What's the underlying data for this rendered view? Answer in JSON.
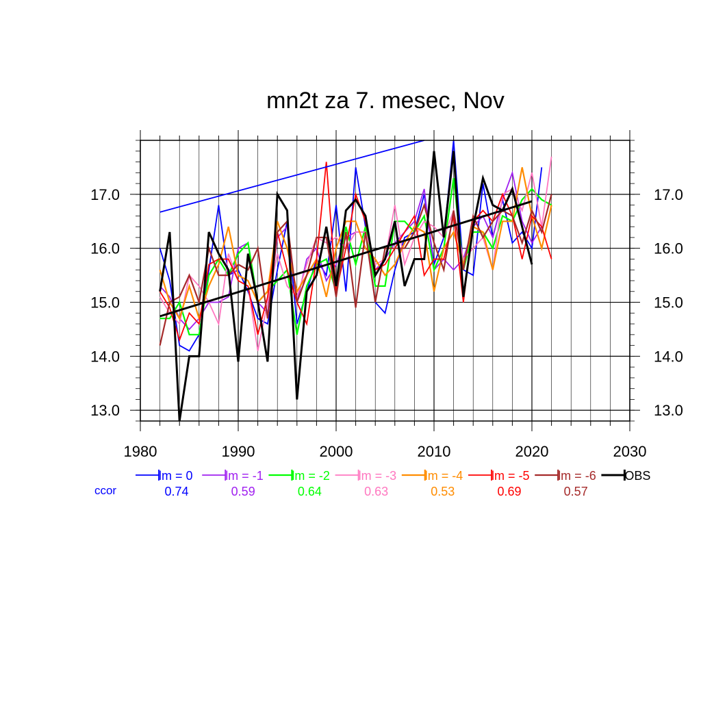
{
  "chart_data": {
    "type": "line",
    "title": "mn2t za 7. mesec, Nov",
    "xlabel": "",
    "ylabel": "",
    "xlim": [
      1980,
      2030
    ],
    "ylim": [
      12.8,
      18.0
    ],
    "x_ticks": [
      "1980",
      "1990",
      "2000",
      "2010",
      "2020",
      "2030"
    ],
    "y_ticks": [
      "13.0",
      "14.0",
      "15.0",
      "16.0",
      "17.0"
    ],
    "grid": true,
    "legend_position": "bottom",
    "ccor_label": "ccor",
    "series": [
      {
        "name": "lm = 0",
        "ccor": "0.74",
        "color": "#0000ff",
        "width": 1.8,
        "x": [
          1982,
          1983,
          1984,
          1985,
          1986,
          1987,
          1988,
          1989,
          1990,
          1991,
          1992,
          1993,
          1994,
          1995,
          1996,
          1997,
          1998,
          1999,
          2000,
          2001,
          2002,
          2003,
          2004,
          2005,
          2006,
          2007,
          2008,
          2009,
          2010,
          2011,
          2012,
          2013,
          2014,
          2015,
          2016,
          2017,
          2018,
          2019,
          2020,
          2021
        ],
        "values": [
          16.0,
          15.4,
          14.2,
          14.1,
          14.4,
          15.6,
          16.8,
          15.5,
          15.6,
          15.2,
          14.7,
          14.6,
          15.6,
          16.5,
          14.6,
          15.2,
          15.8,
          15.5,
          16.8,
          15.2,
          17.5,
          16.4,
          15.0,
          14.8,
          15.6,
          16.2,
          16.3,
          17.0,
          15.7,
          16.2,
          18.0,
          15.6,
          15.5,
          17.2,
          16.2,
          16.9,
          16.1,
          16.3,
          16.0,
          17.5
        ]
      },
      {
        "name": "lm = -1",
        "ccor": "0.59",
        "color": "#a020f0",
        "width": 1.8,
        "x": [
          1982,
          1983,
          1984,
          1985,
          1986,
          1987,
          1988,
          1989,
          1990,
          1991,
          1992,
          1993,
          1994,
          1995,
          1996,
          1997,
          1998,
          1999,
          2000,
          2001,
          2002,
          2003,
          2004,
          2005,
          2006,
          2007,
          2008,
          2009,
          2010,
          2011,
          2012,
          2013,
          2014,
          2015,
          2016,
          2017,
          2018,
          2019,
          2020,
          2021
        ],
        "values": [
          15.3,
          15.1,
          14.7,
          14.5,
          14.7,
          15.0,
          15.0,
          15.1,
          16.0,
          16.1,
          15.0,
          14.8,
          16.2,
          16.4,
          15.0,
          15.8,
          16.0,
          15.4,
          15.7,
          16.2,
          16.3,
          16.3,
          15.6,
          15.8,
          16.1,
          16.3,
          16.5,
          17.1,
          15.6,
          15.8,
          15.6,
          15.8,
          16.4,
          16.6,
          16.2,
          16.9,
          17.4,
          16.5,
          16.1,
          16.4
        ]
      },
      {
        "name": "lm = -2",
        "ccor": "0.64",
        "color": "#00ff00",
        "width": 2.2,
        "x": [
          1982,
          1983,
          1984,
          1985,
          1986,
          1987,
          1988,
          1989,
          1990,
          1991,
          1992,
          1993,
          1994,
          1995,
          1996,
          1997,
          1998,
          1999,
          2000,
          2001,
          2002,
          2003,
          2004,
          2005,
          2006,
          2007,
          2008,
          2009,
          2010,
          2011,
          2012,
          2013,
          2014,
          2015,
          2016,
          2017,
          2018,
          2019,
          2020,
          2021,
          2022
        ],
        "values": [
          14.7,
          14.7,
          15.0,
          14.4,
          14.4,
          15.5,
          15.8,
          15.5,
          15.9,
          16.1,
          15.0,
          15.2,
          15.4,
          15.6,
          14.4,
          15.3,
          15.7,
          15.8,
          15.2,
          16.4,
          15.7,
          16.4,
          15.3,
          15.3,
          16.5,
          16.5,
          16.3,
          16.6,
          15.6,
          16.0,
          17.3,
          15.6,
          16.3,
          16.3,
          16.0,
          16.6,
          16.5,
          16.9,
          17.1,
          16.9,
          16.8
        ]
      },
      {
        "name": "lm = -3",
        "ccor": "0.63",
        "color": "#ff77c0",
        "width": 1.8,
        "x": [
          1982,
          1983,
          1984,
          1985,
          1986,
          1987,
          1988,
          1989,
          1990,
          1991,
          1992,
          1993,
          1994,
          1995,
          1996,
          1997,
          1998,
          1999,
          2000,
          2001,
          2002,
          2003,
          2004,
          2005,
          2006,
          2007,
          2008,
          2009,
          2010,
          2011,
          2012,
          2013,
          2014,
          2015,
          2016,
          2017,
          2018,
          2019,
          2020,
          2021,
          2022
        ],
        "values": [
          15.1,
          14.8,
          14.6,
          15.5,
          15.3,
          15.0,
          14.6,
          15.9,
          15.4,
          15.3,
          14.1,
          15.0,
          15.9,
          15.3,
          15.1,
          15.7,
          16.2,
          16.1,
          16.2,
          16.0,
          16.3,
          16.3,
          15.7,
          15.8,
          16.8,
          15.7,
          16.2,
          16.5,
          16.4,
          16.2,
          16.7,
          15.8,
          16.0,
          16.2,
          15.6,
          17.0,
          17.1,
          16.7,
          17.4,
          16.4,
          17.7
        ]
      },
      {
        "name": "lm = -4",
        "ccor": "0.53",
        "color": "#ff8c00",
        "width": 2.2,
        "x": [
          1982,
          1983,
          1984,
          1985,
          1986,
          1987,
          1988,
          1989,
          1990,
          1991,
          1992,
          1993,
          1994,
          1995,
          1996,
          1997,
          1998,
          1999,
          2000,
          2001,
          2002,
          2003,
          2004,
          2005,
          2006,
          2007,
          2008,
          2009,
          2010,
          2011,
          2012,
          2013,
          2014,
          2015,
          2016,
          2017,
          2018,
          2019,
          2020,
          2021,
          2022
        ],
        "values": [
          15.6,
          15.0,
          14.7,
          15.3,
          14.7,
          15.3,
          15.7,
          16.4,
          15.5,
          15.4,
          15.0,
          15.2,
          16.5,
          16.0,
          15.2,
          15.5,
          15.8,
          15.1,
          16.0,
          16.5,
          16.5,
          16.0,
          15.8,
          15.5,
          15.7,
          16.1,
          16.4,
          16.3,
          15.2,
          16.0,
          16.3,
          15.7,
          16.4,
          16.3,
          15.6,
          16.5,
          16.5,
          17.5,
          16.6,
          16.0,
          16.8
        ]
      },
      {
        "name": "lm = -5",
        "ccor": "0.69",
        "color": "#ff0000",
        "width": 1.8,
        "x": [
          1982,
          1983,
          1984,
          1985,
          1986,
          1987,
          1988,
          1989,
          1990,
          1991,
          1992,
          1993,
          1994,
          1995,
          1996,
          1997,
          1998,
          1999,
          2000,
          2001,
          2002,
          2003,
          2004,
          2005,
          2006,
          2007,
          2008,
          2009,
          2010,
          2011,
          2012,
          2013,
          2014,
          2015,
          2016,
          2017,
          2018,
          2019,
          2020,
          2021,
          2022
        ],
        "values": [
          15.2,
          14.9,
          14.3,
          14.8,
          14.6,
          15.7,
          15.8,
          15.8,
          15.4,
          15.3,
          14.4,
          15.1,
          16.3,
          15.6,
          15.0,
          14.6,
          15.8,
          17.6,
          15.2,
          16.0,
          17.0,
          16.5,
          15.6,
          15.7,
          16.0,
          16.3,
          16.6,
          15.5,
          15.8,
          15.8,
          16.6,
          15.0,
          16.5,
          16.7,
          16.5,
          17.0,
          16.6,
          15.8,
          16.6,
          16.4,
          15.8
        ]
      },
      {
        "name": "lm = -6",
        "ccor": "0.57",
        "color": "#a52a2a",
        "width": 2.2,
        "x": [
          1982,
          1983,
          1984,
          1985,
          1986,
          1987,
          1988,
          1989,
          1990,
          1991,
          1992,
          1993,
          1994,
          1995,
          1996,
          1997,
          1998,
          1999,
          2000,
          2001,
          2002,
          2003,
          2004,
          2005,
          2006,
          2007,
          2008,
          2009,
          2010,
          2011,
          2012,
          2013,
          2014,
          2015,
          2016,
          2017,
          2018,
          2019,
          2020,
          2021,
          2022
        ],
        "values": [
          14.2,
          15.0,
          15.1,
          15.5,
          15.0,
          16.0,
          15.5,
          15.5,
          15.7,
          15.6,
          16.0,
          14.7,
          16.3,
          16.5,
          15.0,
          15.5,
          16.2,
          16.2,
          15.1,
          16.3,
          14.9,
          16.3,
          15.0,
          16.0,
          16.0,
          16.0,
          16.3,
          16.8,
          16.1,
          15.6,
          16.7,
          15.6,
          16.6,
          16.2,
          16.5,
          16.7,
          16.6,
          16.1,
          16.7,
          16.3,
          17.0
        ]
      },
      {
        "name": "OBS",
        "ccor": "",
        "color": "#000000",
        "width": 3,
        "x": [
          1982,
          1983,
          1984,
          1985,
          1986,
          1987,
          1988,
          1989,
          1990,
          1991,
          1992,
          1993,
          1994,
          1995,
          1996,
          1997,
          1998,
          1999,
          2000,
          2001,
          2002,
          2003,
          2004,
          2005,
          2006,
          2007,
          2008,
          2009,
          2010,
          2011,
          2012,
          2013,
          2014,
          2015,
          2016,
          2017,
          2018,
          2019,
          2020
        ],
        "values": [
          15.2,
          16.3,
          12.8,
          14.0,
          14.0,
          16.3,
          15.9,
          15.6,
          13.9,
          15.9,
          15.0,
          13.9,
          17.0,
          16.7,
          13.2,
          15.2,
          15.5,
          16.4,
          15.3,
          16.7,
          16.9,
          16.6,
          15.5,
          15.8,
          16.5,
          15.3,
          15.8,
          15.8,
          17.8,
          16.2,
          17.8,
          15.1,
          16.4,
          17.3,
          16.8,
          16.7,
          17.1,
          16.4,
          15.7
        ]
      }
    ],
    "trend_lines": [
      {
        "name": "lm = 0 trend",
        "color": "#0000ff",
        "width": 1.8,
        "x": [
          1982,
          2009
        ],
        "values": [
          16.67,
          18.0
        ]
      },
      {
        "name": "OBS trend",
        "color": "#000000",
        "width": 3,
        "x": [
          1982,
          2020
        ],
        "values": [
          14.74,
          16.87
        ]
      }
    ]
  }
}
